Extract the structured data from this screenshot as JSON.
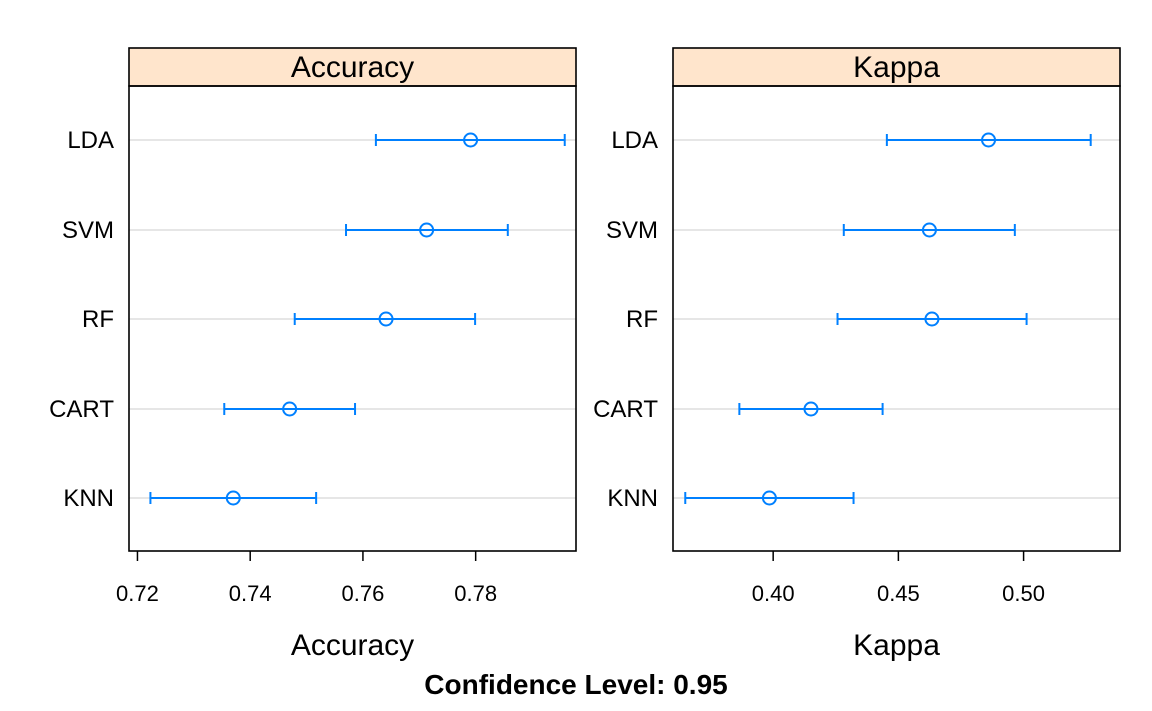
{
  "chart_data": [
    {
      "type": "dotplot",
      "title": "Accuracy",
      "xlabel": "Accuracy",
      "categories": [
        "LDA",
        "SVM",
        "RF",
        "CART",
        "KNN"
      ],
      "estimates": [
        0.7791,
        0.7713,
        0.7641,
        0.747,
        0.737
      ],
      "lower": [
        0.7623,
        0.757,
        0.7479,
        0.7354,
        0.7223
      ],
      "upper": [
        0.7958,
        0.7857,
        0.7799,
        0.7586,
        0.7517
      ],
      "xlim": [
        0.7185,
        0.7978
      ],
      "xticks": [
        0.72,
        0.74,
        0.76,
        0.78
      ],
      "xtick_labels": [
        "0.72",
        "0.74",
        "0.76",
        "0.78"
      ],
      "grid": true
    },
    {
      "type": "dotplot",
      "title": "Kappa",
      "xlabel": "Kappa",
      "categories": [
        "LDA",
        "SVM",
        "RF",
        "CART",
        "KNN"
      ],
      "estimates": [
        0.486,
        0.4624,
        0.4634,
        0.4151,
        0.3985
      ],
      "lower": [
        0.4454,
        0.4282,
        0.4257,
        0.3865,
        0.3649
      ],
      "upper": [
        0.5268,
        0.4965,
        0.5012,
        0.4437,
        0.4321
      ],
      "xlim": [
        0.36,
        0.5385
      ],
      "xticks": [
        0.4,
        0.45,
        0.5
      ],
      "xtick_labels": [
        "0.40",
        "0.45",
        "0.50"
      ],
      "grid": true
    }
  ],
  "subtitle": "Confidence Level: 0.95",
  "colors": {
    "series": "#0080FF",
    "strip_background": "#FFE5CC",
    "gridline": "#E6E6E6"
  }
}
